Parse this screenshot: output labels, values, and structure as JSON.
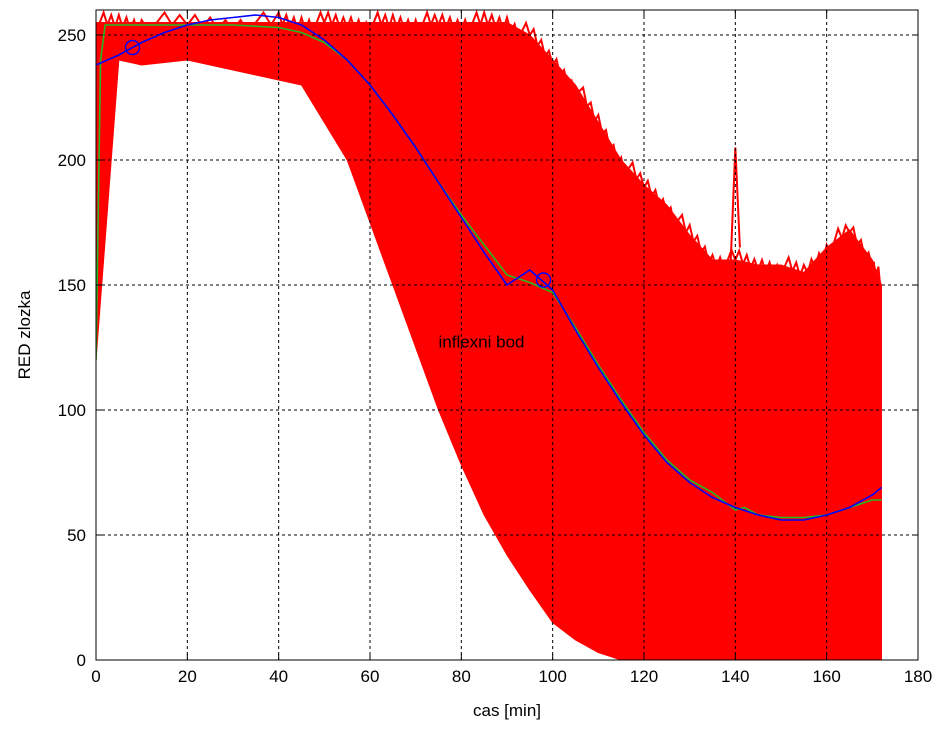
{
  "chart_data": {
    "type": "line",
    "title": "",
    "xlabel": "cas [min]",
    "ylabel": "RED zlozka",
    "xlim": [
      0,
      180
    ],
    "ylim": [
      0,
      260
    ],
    "xticks": [
      0,
      20,
      40,
      60,
      80,
      100,
      120,
      140,
      160,
      180
    ],
    "yticks": [
      0,
      50,
      100,
      150,
      200,
      250
    ],
    "grid": true,
    "grid_style": "dashed",
    "colors": {
      "raw": "#ff0000",
      "mean": "#22bb22",
      "fit": "#0000ff",
      "marker": "#0000ff",
      "grid": "#000000"
    },
    "band": {
      "description_free": true,
      "x": [
        0,
        5,
        10,
        20,
        30,
        40,
        45,
        50,
        55,
        60,
        65,
        70,
        75,
        80,
        85,
        90,
        95,
        100,
        105,
        110,
        115,
        120,
        125,
        130,
        135,
        140,
        145,
        150,
        155,
        160,
        165,
        170,
        172
      ],
      "lower": [
        120,
        240,
        238,
        240,
        236,
        232,
        230,
        215,
        200,
        175,
        150,
        125,
        100,
        78,
        58,
        42,
        28,
        15,
        8,
        3,
        0,
        0,
        0,
        0,
        0,
        0,
        0,
        0,
        0,
        0,
        0,
        0,
        0
      ],
      "upper": [
        255,
        255,
        255,
        255,
        255,
        255,
        255,
        255,
        255,
        255,
        255,
        255,
        255,
        255,
        255,
        255,
        250,
        240,
        230,
        215,
        200,
        190,
        182,
        170,
        160,
        160,
        158,
        158,
        155,
        165,
        172,
        160,
        150
      ]
    },
    "series": [
      {
        "x": [
          0,
          1,
          2,
          5,
          10,
          20,
          30,
          40,
          45,
          50,
          55,
          60,
          65,
          70,
          75,
          80,
          85,
          90,
          95,
          100,
          105,
          110,
          115,
          120,
          125,
          130,
          135,
          140,
          142,
          145,
          150,
          155,
          160,
          165,
          170,
          172
        ],
        "y": [
          120,
          240,
          254,
          254,
          254,
          254,
          254,
          253,
          251,
          247,
          240,
          230,
          218,
          205,
          191,
          178,
          166,
          154,
          151,
          147,
          133,
          118,
          104,
          91,
          80,
          72,
          67,
          60,
          61,
          58,
          57,
          57,
          58,
          61,
          64,
          64
        ],
        "role": "mean"
      },
      {
        "x": [
          0,
          5,
          10,
          15,
          20,
          25,
          30,
          35,
          40,
          45,
          50,
          55,
          60,
          65,
          70,
          75,
          80,
          85,
          90,
          95,
          100,
          105,
          110,
          115,
          120,
          125,
          130,
          135,
          140,
          145,
          150,
          155,
          160,
          165,
          170,
          172
        ],
        "y": [
          238,
          242,
          247,
          251,
          254,
          256,
          257,
          258,
          257,
          254,
          248,
          240,
          230,
          218,
          205,
          191,
          177,
          163,
          150,
          156,
          148,
          132,
          117,
          103,
          90,
          79,
          71,
          65,
          61,
          58,
          56,
          56,
          58,
          61,
          66,
          69
        ],
        "role": "fit"
      }
    ],
    "markers": [
      {
        "x": 8,
        "y": 245
      },
      {
        "x": 98,
        "y": 152
      }
    ],
    "annotations": [
      {
        "text": "inflexni bod",
        "x": 75,
        "y": 125
      }
    ]
  }
}
